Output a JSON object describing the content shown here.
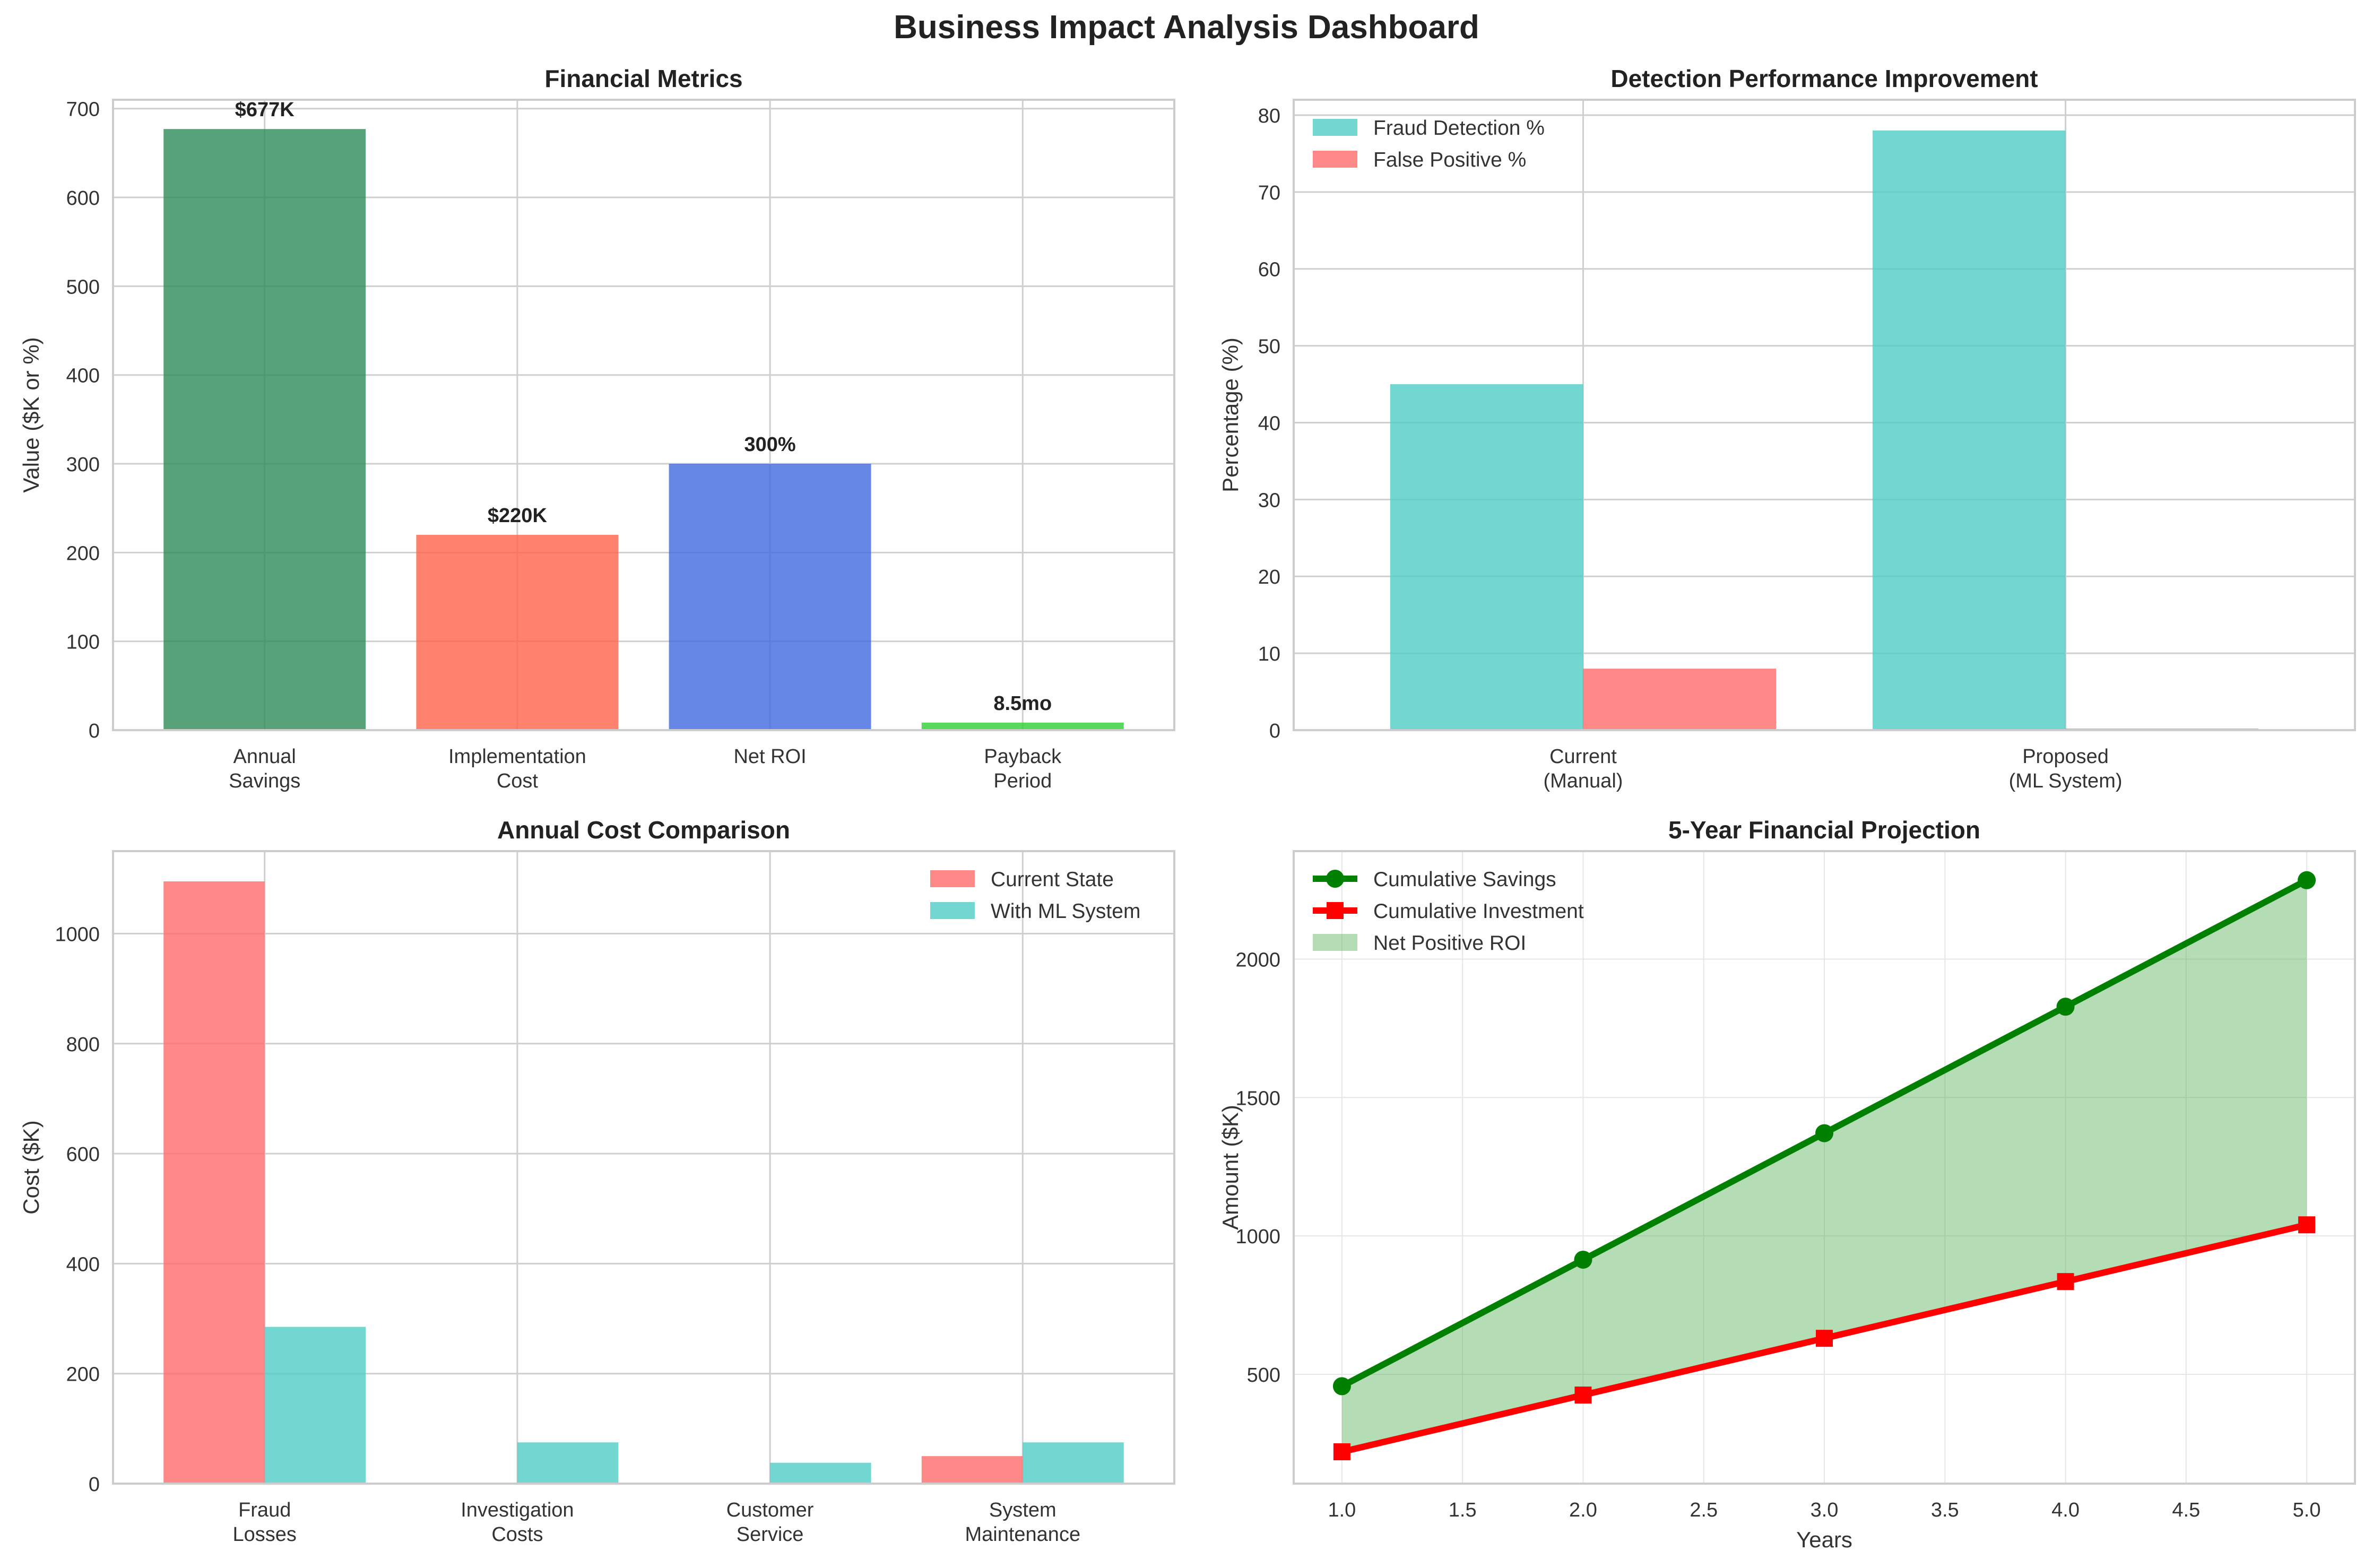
{
  "title": "Business Impact Analysis Dashboard",
  "chart_data": [
    {
      "type": "bar",
      "title": "Financial Metrics",
      "xlabel": "",
      "ylabel": "Value ($K or %)",
      "categories": [
        "Annual\nSavings",
        "Implementation\nCost",
        "Net ROI",
        "Payback\nPeriod"
      ],
      "values": [
        677,
        220,
        300,
        8.5
      ],
      "value_labels": [
        "$677K",
        "$220K",
        "300%",
        "8.5mo"
      ],
      "colors": [
        "#2e8b57",
        "#ff6347",
        "#4169e1",
        "#32cd32"
      ],
      "ylim": [
        0,
        710
      ],
      "yticks": [
        0,
        100,
        200,
        300,
        400,
        500,
        600,
        700
      ],
      "grid": true
    },
    {
      "type": "bar",
      "title": "Detection Performance Improvement",
      "xlabel": "",
      "ylabel": "Percentage (%)",
      "categories": [
        "Current\n(Manual)",
        "Proposed\n(ML System)"
      ],
      "series": [
        {
          "name": "Fraud Detection %",
          "values": [
            45,
            78
          ],
          "color": "#4ecdc4"
        },
        {
          "name": "False Positive %",
          "values": [
            8,
            0.2
          ],
          "color": "#ff6b6b"
        }
      ],
      "ylim": [
        0,
        82
      ],
      "yticks": [
        0,
        10,
        20,
        30,
        40,
        50,
        60,
        70,
        80
      ],
      "legend": "top-left",
      "grid": true
    },
    {
      "type": "bar",
      "title": "Annual Cost Comparison",
      "xlabel": "",
      "ylabel": "Cost ($K)",
      "categories": [
        "Fraud\nLosses",
        "Investigation\nCosts",
        "Customer\nService",
        "System\nMaintenance"
      ],
      "series": [
        {
          "name": "Current State",
          "values": [
            1095,
            0,
            0,
            50
          ],
          "color": "#ff6b6b"
        },
        {
          "name": "With ML System",
          "values": [
            285,
            75,
            38,
            75
          ],
          "color": "#4ecdc4"
        }
      ],
      "ylim": [
        0,
        1150
      ],
      "yticks": [
        0,
        200,
        400,
        600,
        800,
        1000
      ],
      "legend": "top-right",
      "grid": true
    },
    {
      "type": "line",
      "title": "5-Year Financial Projection",
      "xlabel": "Years",
      "ylabel": "Amount ($K)",
      "x": [
        1,
        2,
        3,
        4,
        5
      ],
      "series": [
        {
          "name": "Cumulative Savings",
          "values": [
            457,
            914,
            1371,
            1828,
            2285
          ],
          "color": "#008000",
          "marker": "circle"
        },
        {
          "name": "Cumulative Investment",
          "values": [
            220,
            425,
            630,
            835,
            1040
          ],
          "color": "#ff0000",
          "marker": "square"
        }
      ],
      "fill_between": {
        "name": "Net Positive ROI",
        "color": "#4caf50"
      },
      "xlim": [
        0.8,
        5.2
      ],
      "ylim": [
        105,
        2390
      ],
      "xticks": [
        1.0,
        1.5,
        2.0,
        2.5,
        3.0,
        3.5,
        4.0,
        4.5,
        5.0
      ],
      "yticks": [
        500,
        1000,
        1500,
        2000
      ],
      "legend": "top-left",
      "grid": true
    }
  ]
}
